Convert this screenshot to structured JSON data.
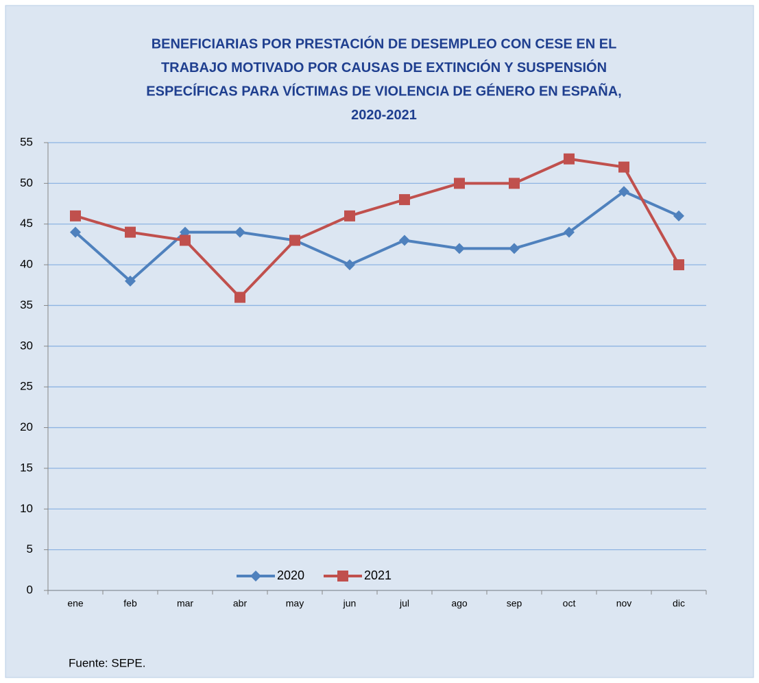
{
  "chart_data": {
    "type": "line",
    "title": [
      "BENEFICIARIAS POR PRESTACIÓN DE DESEMPLEO CON CESE EN EL",
      "TRABAJO MOTIVADO POR CAUSAS DE EXTINCIÓN Y SUSPENSIÓN",
      "ESPECÍFICAS PARA VÍCTIMAS DE VIOLENCIA DE GÉNERO EN ESPAÑA,",
      "2020-2021"
    ],
    "categories": [
      "ene",
      "feb",
      "mar",
      "abr",
      "may",
      "jun",
      "jul",
      "ago",
      "sep",
      "oct",
      "nov",
      "dic"
    ],
    "series": [
      {
        "name": "2020",
        "color": "#4f81bd",
        "marker": "diamond",
        "values": [
          44,
          38,
          44,
          44,
          43,
          40,
          43,
          42,
          42,
          44,
          49,
          46
        ]
      },
      {
        "name": "2021",
        "color": "#c0504d",
        "marker": "square",
        "values": [
          46,
          44,
          43,
          36,
          43,
          46,
          48,
          50,
          50,
          53,
          52,
          40
        ]
      }
    ],
    "ylim": [
      0,
      55
    ],
    "yticks": [
      0,
      5,
      10,
      15,
      20,
      25,
      30,
      35,
      40,
      45,
      50,
      55
    ],
    "grid": true,
    "legend": "bottom",
    "source": "Fuente: SEPE."
  }
}
